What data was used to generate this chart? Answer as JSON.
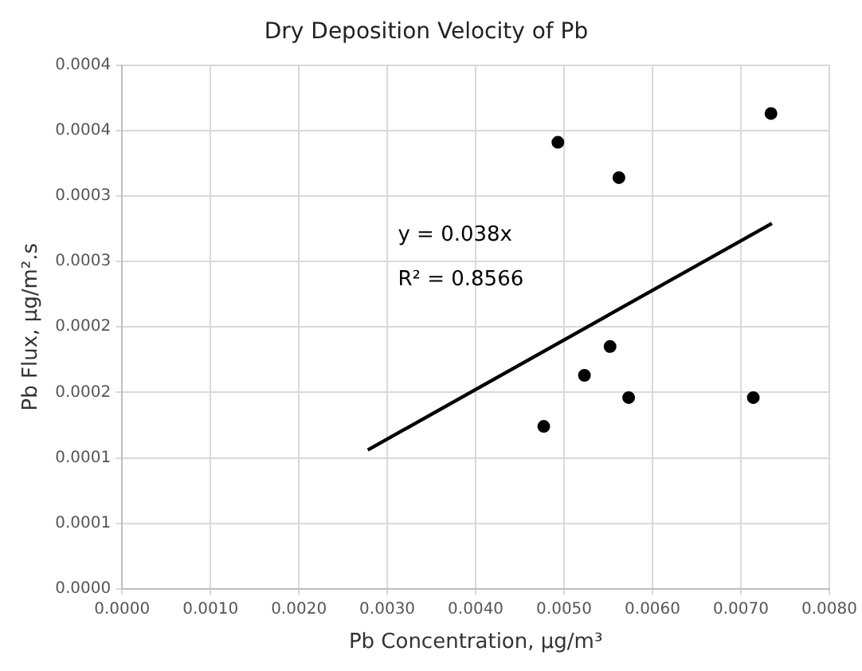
{
  "chart_data": {
    "type": "scatter",
    "title": "Dry Deposition Velocity of Pb",
    "xlabel": "Pb Concentration, µg/m³",
    "ylabel": "Pb Flux, µg/m².s",
    "x": [
      0.00493,
      0.00734,
      0.00562,
      0.00552,
      0.00523,
      0.00573,
      0.00714,
      0.00477
    ],
    "series": [
      {
        "color": "#000000",
        "values": [
          0.000341,
          0.000363,
          0.000314,
          0.000185,
          0.000163,
          0.000146,
          0.000146,
          0.000124
        ],
        "marker": "circle"
      },
      {
        "type": "line",
        "color": "#000000",
        "x": [
          0.00278,
          0.00735
        ],
        "values": [
          0.000106,
          0.000279
        ],
        "marker": "none"
      }
    ],
    "xlim": [
      0,
      0.008
    ],
    "xticks": [
      {
        "value": 0,
        "label": "0.0000"
      },
      {
        "value": 0.001,
        "label": "0.0010"
      },
      {
        "value": 0.002,
        "label": "0.0020"
      },
      {
        "value": 0.003,
        "label": "0.0030"
      },
      {
        "value": 0.004,
        "label": "0.0040"
      },
      {
        "value": 0.005,
        "label": "0.0050"
      },
      {
        "value": 0.006,
        "label": "0.0060"
      },
      {
        "value": 0.007,
        "label": "0.0070"
      },
      {
        "value": 0.008,
        "label": "0.0080"
      }
    ],
    "ylim": [
      0,
      0.0004
    ],
    "yticks": [
      {
        "value": 0,
        "label": "0.0000"
      },
      {
        "value": 5e-05,
        "label": "0.0001"
      },
      {
        "value": 0.0001,
        "label": "0.0001"
      },
      {
        "value": 0.00015,
        "label": "0.0002"
      },
      {
        "value": 0.0002,
        "label": "0.0002"
      },
      {
        "value": 0.00025,
        "label": "0.0003"
      },
      {
        "value": 0.0003,
        "label": "0.0003"
      },
      {
        "value": 0.00035,
        "label": "0.0004"
      },
      {
        "value": 0.0004,
        "label": "0.0004"
      }
    ],
    "annotations": [
      "y = 0.038x",
      "R² = 0.8566"
    ],
    "grid": true,
    "legend": false
  }
}
